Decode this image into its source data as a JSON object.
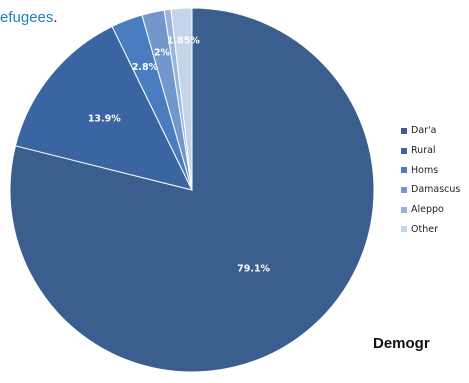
{
  "page_text": {
    "top_link": "efugees",
    "top_punct": ".",
    "bottom_heading": "Demogr"
  },
  "chart_data": {
    "type": "pie",
    "title": "",
    "start_angle_deg": 0,
    "direction": "clockwise",
    "colors": [
      "#3a5f8f",
      "#3b65a2",
      "#4a7dbf",
      "#7197cc",
      "#97b4dc",
      "#c6d4ea"
    ],
    "slices": [
      {
        "label": "Dar'a",
        "value": 79.1,
        "display": "79.1%"
      },
      {
        "label": "Rural",
        "value": 13.9,
        "display": "13.9%"
      },
      {
        "label": "Homs",
        "value": 2.8,
        "display": "2.8%"
      },
      {
        "label": "Damascus",
        "value": 2.0,
        "display": "2%"
      },
      {
        "label": "Aleppo",
        "value": 0.6,
        "display": "0.60%"
      },
      {
        "label": "Other",
        "value": 1.85,
        "display": "1.85%"
      }
    ],
    "legend": {
      "position": "right",
      "items": [
        "Dar'a",
        "Rural",
        "Homs",
        "Damascus",
        "Aleppo",
        "Other"
      ]
    }
  }
}
